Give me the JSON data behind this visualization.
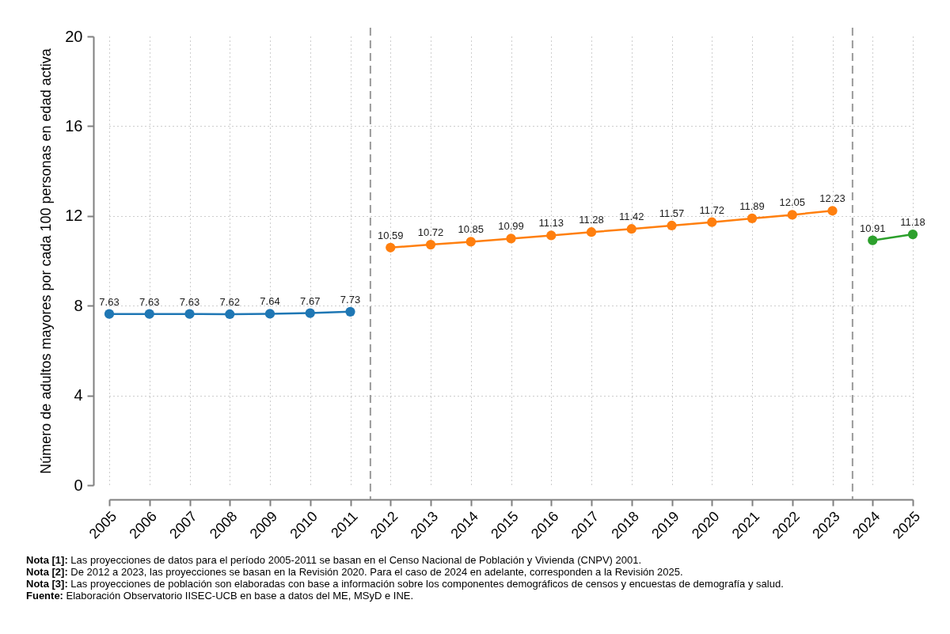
{
  "chart_data": {
    "type": "line",
    "ylabel": "Número de adultos mayores por cada 100 personas en edad activa",
    "series": [
      {
        "color": "#1f77b4",
        "x": [
          2005,
          2006,
          2007,
          2008,
          2009,
          2010,
          2011
        ],
        "values": [
          7.63,
          7.63,
          7.63,
          7.62,
          7.64,
          7.67,
          7.73
        ]
      },
      {
        "color": "#ff7f0e",
        "x": [
          2012,
          2013,
          2014,
          2015,
          2016,
          2017,
          2018,
          2019,
          2020,
          2021,
          2022,
          2023
        ],
        "values": [
          10.59,
          10.72,
          10.85,
          10.99,
          11.13,
          11.28,
          11.42,
          11.57,
          11.72,
          11.89,
          12.05,
          12.23
        ]
      },
      {
        "color": "#2ca02c",
        "x": [
          2024,
          2025
        ],
        "values": [
          10.91,
          11.18
        ]
      }
    ],
    "xlim": [
      2005,
      2025
    ],
    "xticks": [
      2005,
      2006,
      2007,
      2008,
      2009,
      2010,
      2011,
      2012,
      2013,
      2014,
      2015,
      2016,
      2017,
      2018,
      2019,
      2020,
      2021,
      2022,
      2023,
      2024,
      2025
    ],
    "ylim": [
      0,
      20
    ],
    "yticks": [
      0,
      4,
      8,
      12,
      16,
      20
    ],
    "ref_lines": [
      {
        "axis": "x",
        "value": 2011.5,
        "color": "#9a9a9a",
        "line_style": "dashed"
      },
      {
        "axis": "x",
        "value": 2023.5,
        "color": "#9a9a9a",
        "line_style": "dashed"
      }
    ],
    "grid": true,
    "marker": "circle",
    "line_style": "solid",
    "data_labels": true,
    "annotations": [
      "Nota [1]: Las proyecciones de datos para el período 2005-2011 se basan en el Censo Nacional de Población y Vivienda (CNPV) 2001.",
      "Nota [2]: De 2012 a 2023, las proyecciones se basan en la Revisión 2020. Para el caso de 2024 en adelante, corresponden a la Revisión 2025.",
      "Nota [3]: Las proyecciones de población son elaboradas con base a información sobre los componentes demográficos de censos y encuestas de demografía y salud.",
      "Fuente: Elaboración Observatorio IISEC-UCB en base a datos del ME, MSyD e INE."
    ]
  }
}
